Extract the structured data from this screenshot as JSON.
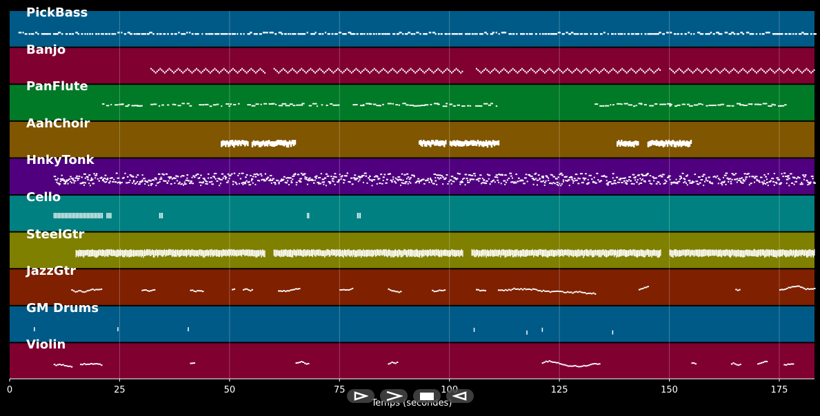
{
  "chart_data": {
    "type": "piano-roll",
    "xlabel": "Temps (secondes)",
    "xlim": [
      0,
      183
    ],
    "xticks": [
      0,
      25,
      50,
      75,
      100,
      125,
      150,
      175
    ],
    "tracks": [
      {
        "name": "PickBass",
        "color": "#005a87",
        "segments": [
          [
            2,
            183
          ]
        ],
        "style": "dense-line"
      },
      {
        "name": "Banjo",
        "color": "#800030",
        "segments": [
          [
            32,
            58
          ],
          [
            60,
            103
          ],
          [
            106,
            148
          ],
          [
            150,
            183
          ]
        ],
        "style": "zigzag"
      },
      {
        "name": "PanFlute",
        "color": "#007a26",
        "segments": [
          [
            21,
            30
          ],
          [
            32,
            41
          ],
          [
            43,
            50
          ],
          [
            50,
            53
          ],
          [
            54,
            67
          ],
          [
            68,
            75
          ],
          [
            78,
            86
          ],
          [
            87,
            100
          ],
          [
            100,
            111
          ],
          [
            133,
            138
          ],
          [
            139,
            150
          ],
          [
            150,
            162
          ],
          [
            163,
            177
          ]
        ],
        "style": "sparse"
      },
      {
        "name": "AahChoir",
        "color": "#805600",
        "segments": [
          [
            48,
            54
          ],
          [
            55,
            65
          ],
          [
            93,
            99
          ],
          [
            100,
            111
          ],
          [
            138,
            143
          ],
          [
            145,
            155
          ]
        ],
        "style": "blocks"
      },
      {
        "name": "HnkyTonk",
        "color": "#50007f",
        "segments": [
          [
            10,
            183
          ]
        ],
        "style": "dense-multi"
      },
      {
        "name": "Cello",
        "color": "#008080",
        "segments": [
          [
            10,
            21
          ],
          [
            22,
            23
          ],
          [
            34,
            34.8
          ],
          [
            67.6,
            68.2
          ],
          [
            79,
            79.8
          ]
        ],
        "style": "stripes"
      },
      {
        "name": "SteelGtr",
        "color": "#7f7f00",
        "segments": [
          [
            15,
            58
          ],
          [
            60,
            103
          ],
          [
            105,
            148
          ],
          [
            150,
            183
          ]
        ],
        "style": "dense-band"
      },
      {
        "name": "JazzGtr",
        "color": "#7f2000",
        "segments": [
          [
            14,
            21
          ],
          [
            30,
            33
          ],
          [
            41,
            44
          ],
          [
            50.5,
            51
          ],
          [
            53,
            55
          ],
          [
            61,
            66
          ],
          [
            75,
            78
          ],
          [
            86,
            89
          ],
          [
            96,
            99
          ],
          [
            106,
            108
          ],
          [
            111,
            133
          ],
          [
            143,
            145
          ],
          [
            165,
            166
          ],
          [
            175,
            183
          ]
        ],
        "style": "melody"
      },
      {
        "name": "GM Drums",
        "color": "#005a87",
        "segments": [
          [
            5.5,
            5.8
          ],
          [
            24.5,
            24.8
          ],
          [
            40.5,
            40.8
          ],
          [
            105.5,
            105.8
          ],
          [
            117.5,
            117.8
          ],
          [
            121,
            121.3
          ],
          [
            137,
            137.3
          ]
        ],
        "style": "ticks"
      },
      {
        "name": "Violin",
        "color": "#800030",
        "segments": [
          [
            10,
            14
          ],
          [
            16,
            21
          ],
          [
            41,
            42
          ],
          [
            65,
            68
          ],
          [
            86,
            88
          ],
          [
            121,
            134
          ],
          [
            155,
            156
          ],
          [
            164,
            166
          ],
          [
            170,
            172
          ],
          [
            176,
            178
          ]
        ],
        "style": "melody"
      }
    ]
  },
  "controls": [
    {
      "name": "rewind-icon"
    },
    {
      "name": "play-icon"
    },
    {
      "name": "stop-icon"
    },
    {
      "name": "back-icon"
    }
  ]
}
